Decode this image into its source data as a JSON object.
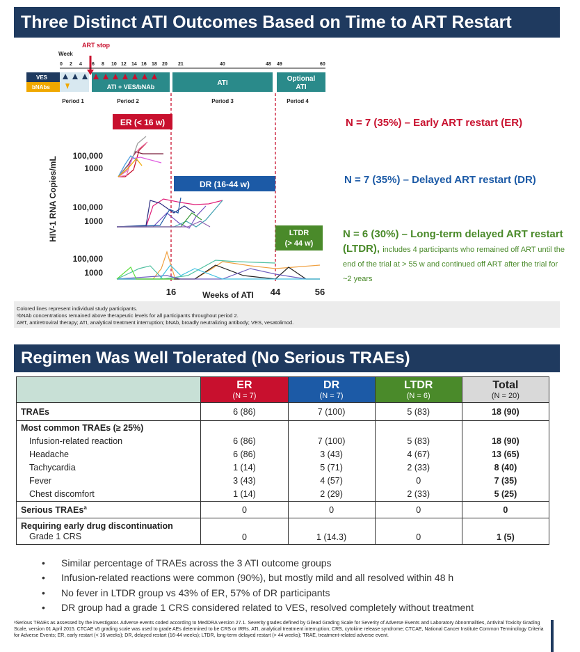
{
  "title": "Three Distinct ATI Outcomes Based on Time to ART Restart",
  "schema": {
    "week_label": "Week",
    "art_stop": "ART stop",
    "period1_ticks": [
      "0",
      "2",
      "4"
    ],
    "period2_ticks": [
      "6",
      "8",
      "10",
      "12",
      "14",
      "16",
      "18",
      "20"
    ],
    "period3_ticks": [
      "21",
      "40",
      "48"
    ],
    "period4_ticks": [
      "49",
      "60"
    ],
    "row_ves": "VES",
    "row_bnabs": "bNAbs",
    "box_ati_ves": "ATI + VES/bNAb",
    "box_ati": "ATI",
    "box_optional": "Optional ATI",
    "period1": "Period 1",
    "period2": "Period 2",
    "period2_sup": "a",
    "period3": "Period 3",
    "period4": "Period 4"
  },
  "chart": {
    "ylabel": "HIV-1 RNA Copies/mL",
    "xlabel": "Weeks of ATI",
    "ticks_y": [
      "100,000",
      "1000"
    ],
    "ticks_x": [
      "16",
      "44",
      "56"
    ],
    "er_label": "ER (< 16 w)",
    "dr_label": "DR (16-44 w)",
    "ltdr_label": "LTDR (> 44 w)"
  },
  "outcomes": {
    "er": "N = 7 (35%) – Early ART restart (ER)",
    "dr": "N = 7 (35%) – Delayed ART restart (DR)",
    "ltdr_main": "N = 6 (30%) – Long-term delayed ART restart (LTDR),",
    "ltdr_sub": "includes 4 participants who remained off ART until the end of the trial at > 55 w and continued off ART after the trial for ~2 years"
  },
  "notes": {
    "line1": "Colored lines represent individual study participants.",
    "line2": "ᵃbNAb concentrations remained above therapeutic levels for all participants throughout period 2.",
    "line3": "ART, antiretroviral therapy; ATI, analytical treatment interruption; bNAb, broadly neutralizing antibody; VES, vesatolimod."
  },
  "section2_title": "Regimen Was Well Tolerated (No Serious TRAEs)",
  "table": {
    "headers": [
      {
        "name": "ER",
        "n": "(N = 7)"
      },
      {
        "name": "DR",
        "n": "(N = 7)"
      },
      {
        "name": "LTDR",
        "n": "(N = 6)"
      },
      {
        "name": "Total",
        "n": "(N = 20)"
      }
    ],
    "traes": {
      "label": "TRAEs",
      "vals": [
        "6 (86)",
        "7 (100)",
        "5 (83)",
        "18 (90)"
      ]
    },
    "most_common": "Most common TRAEs (≥ 25%)",
    "rows": [
      {
        "label": "Infusion-related reaction",
        "vals": [
          "6 (86)",
          "7 (100)",
          "5 (83)",
          "18 (90)"
        ]
      },
      {
        "label": "Headache",
        "vals": [
          "6 (86)",
          "3 (43)",
          "4 (67)",
          "13 (65)"
        ]
      },
      {
        "label": "Tachycardia",
        "vals": [
          "1 (14)",
          "5 (71)",
          "2 (33)",
          "8 (40)"
        ]
      },
      {
        "label": "Fever",
        "vals": [
          "3 (43)",
          "4 (57)",
          "0",
          "7 (35)"
        ]
      },
      {
        "label": "Chest discomfort",
        "vals": [
          "1 (14)",
          "2 (29)",
          "2 (33)",
          "5 (25)"
        ]
      }
    ],
    "serious": {
      "label": "Serious TRAEs",
      "sup": "a",
      "vals": [
        "0",
        "0",
        "0",
        "0"
      ]
    },
    "discont": {
      "label": "Requiring early drug discontinuation",
      "sub": "Grade 1 CRS",
      "vals": [
        "0",
        "1 (14.3)",
        "0",
        "1 (5)"
      ]
    }
  },
  "bullets": [
    "Similar percentage of TRAEs across the 3 ATI outcome groups",
    "Infusion-related reactions were common (90%), but mostly mild and all resolved within 48 h",
    "No fever in LTDR group vs 43% of ER, 57% of DR participants",
    "DR group had a grade 1 CRS considered related to VES, resolved completely without treatment"
  ],
  "footnote": "ᵃSerious TRAEs as assessed by the investigator. Adverse events coded according to MedDRA version 27.1. Severity grades defined by Gilead Grading Scale for Severity of Adverse Events and Laboratory Abnormalities, Antiviral Toxicity Grading Scale, version 01 April 2015. CTCAE v5 grading scale was used to grade AEs determined to be CRS or IRRs. ATI, analytical treatment interruption; CRS, cytokine release syndrome; CTCAE, National Cancer Institute Common Terminology Criteria for Adverse Events; ER, early restart (< 16 weeks); DR, delayed restart (16-44 weeks); LTDR, long-term delayed restart (> 44 weeks); TRAE, treatment-related adverse event.",
  "colors": {
    "navy": "#1f3a5f",
    "er": "#c8102e",
    "dr": "#1c5aa6",
    "ltdr": "#4a8a2a",
    "teal": "#2a8a8a",
    "total": "#d9d9d9"
  }
}
